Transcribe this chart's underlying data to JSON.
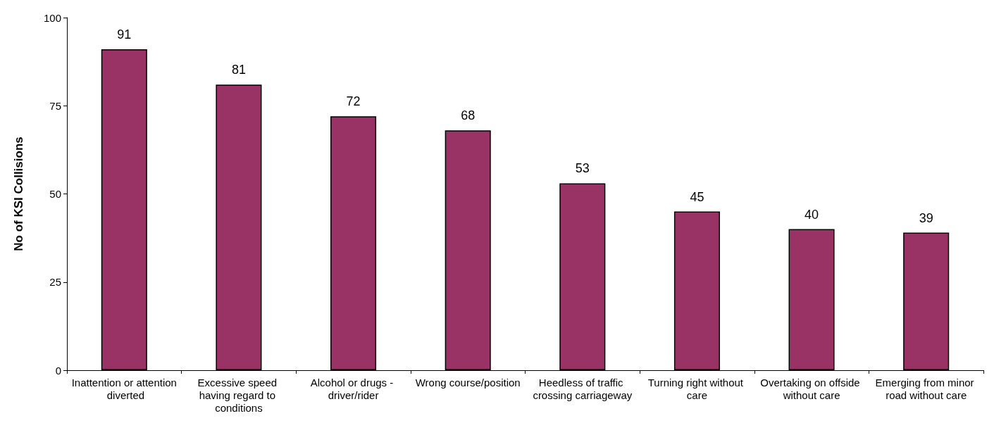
{
  "chart_data": {
    "type": "bar",
    "ylabel": "No of KSI Collisions",
    "categories": [
      "Inattention or attention diverted",
      "Excessive speed having regard to conditions",
      "Alcohol or drugs - driver/rider",
      "Wrong course/position",
      "Heedless of traffic crossing carriageway",
      "Turning right without care",
      "Overtaking on offside without care",
      "Emerging from minor road without care"
    ],
    "values": [
      91,
      81,
      72,
      68,
      53,
      45,
      40,
      39
    ],
    "color": "#993366",
    "ylim": [
      0,
      100
    ],
    "yticks": [
      0,
      25,
      50,
      75,
      100
    ],
    "grid": false,
    "data_labels": true
  }
}
